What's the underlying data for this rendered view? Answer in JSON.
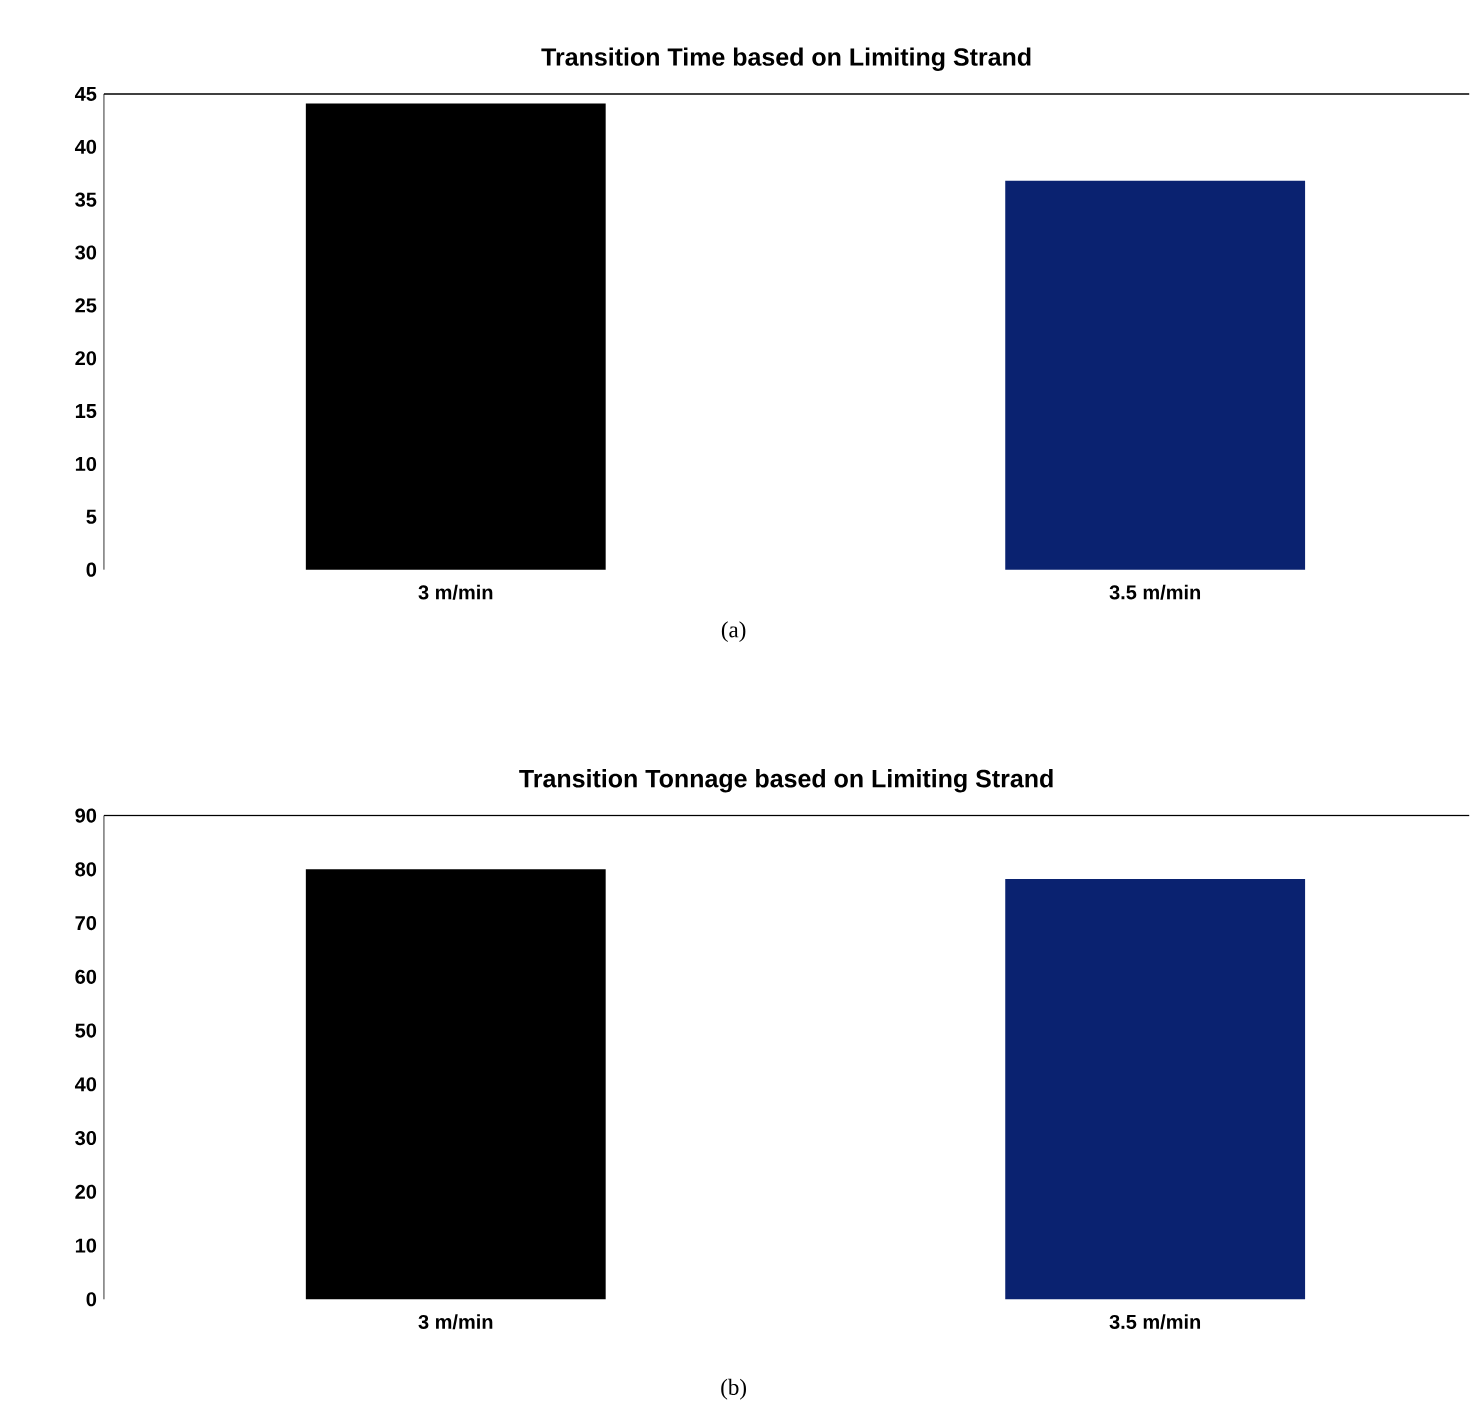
{
  "chart_data": [
    {
      "type": "bar",
      "title": "Transition Time based on Limiting Strand",
      "categories": [
        "3 m/min",
        "3.5 m/min"
      ],
      "values": [
        44.1,
        36.8
      ],
      "colors": [
        "#000000",
        "#0a2270"
      ],
      "ylim": [
        0,
        45
      ],
      "yticks": [
        0,
        5,
        10,
        15,
        20,
        25,
        30,
        35,
        40,
        45
      ],
      "annotations": [
        "(a)"
      ]
    },
    {
      "type": "bar",
      "title": "Transition Tonnage based on Limiting Strand",
      "categories": [
        "3 m/min",
        "3.5 m/min"
      ],
      "values": [
        80,
        78.2
      ],
      "colors": [
        "#000000",
        "#0a2270"
      ],
      "ylim": [
        0,
        90
      ],
      "yticks": [
        0,
        10,
        20,
        30,
        40,
        50,
        60,
        70,
        80,
        90
      ],
      "annotations": [
        "(b)"
      ]
    }
  ]
}
